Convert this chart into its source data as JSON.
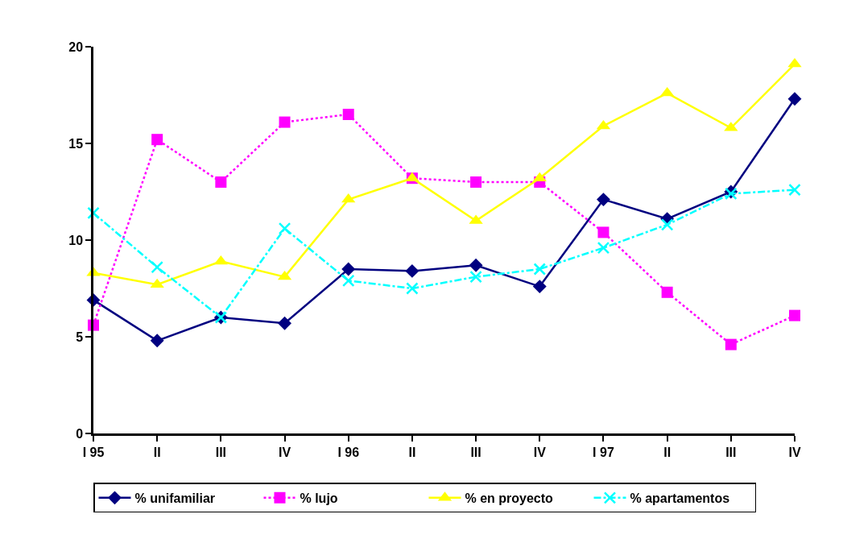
{
  "chart_data": {
    "type": "line",
    "categories": [
      "I 95",
      "II",
      "III",
      "IV",
      "I 96",
      "II",
      "III",
      "IV",
      "I 97",
      "II",
      "III",
      "IV"
    ],
    "ylim": [
      0,
      20
    ],
    "yticks": [
      0,
      5,
      10,
      15,
      20
    ],
    "legend": "bottom",
    "series": [
      {
        "name": "% unifamiliar",
        "color": "#000080",
        "marker": "diamond",
        "line_style": "solid",
        "values": [
          6.9,
          4.8,
          6.0,
          5.7,
          8.5,
          8.4,
          8.7,
          7.6,
          12.1,
          11.1,
          12.5,
          17.3
        ]
      },
      {
        "name": "% lujo",
        "color": "#ff00ff",
        "marker": "square",
        "line_style": "dotted",
        "values": [
          5.6,
          15.2,
          13.0,
          16.1,
          16.5,
          13.2,
          13.0,
          13.0,
          10.4,
          7.3,
          4.6,
          6.1
        ]
      },
      {
        "name": "% en proyecto",
        "color": "#ffff00",
        "marker": "triangle",
        "line_style": "solid",
        "values": [
          8.3,
          7.7,
          8.9,
          8.1,
          12.1,
          13.2,
          11.0,
          13.2,
          15.9,
          17.6,
          15.8,
          19.1
        ]
      },
      {
        "name": "% apartamentos",
        "color": "#00ffff",
        "marker": "cross",
        "line_style": "dashed",
        "values": [
          11.4,
          8.6,
          6.0,
          10.6,
          7.9,
          7.5,
          8.1,
          8.5,
          9.6,
          10.8,
          12.4,
          12.6
        ]
      }
    ]
  }
}
